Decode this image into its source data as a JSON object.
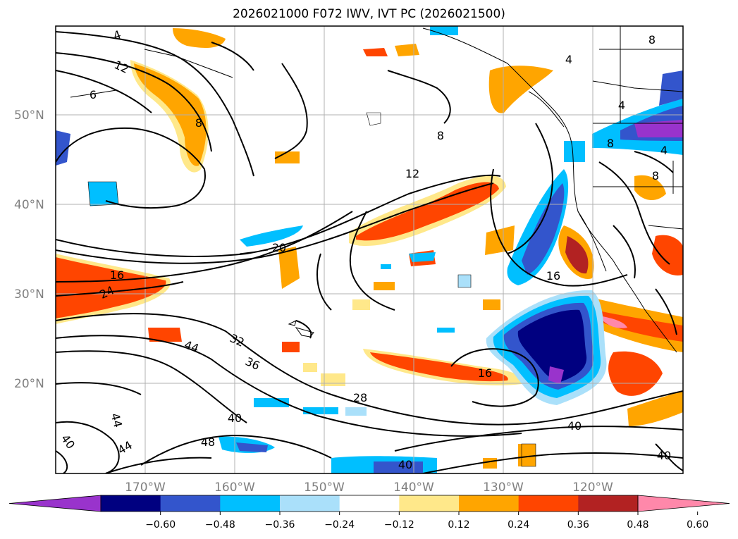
{
  "title": "2026021000 F072 IWV, IVT PC (2026021500)",
  "map": {
    "lat_labels": [
      "50°N",
      "40°N",
      "30°N",
      "20°N"
    ],
    "lon_labels": [
      "170°W",
      "160°W",
      "150°W",
      "140°W",
      "130°W",
      "120°W"
    ],
    "contour_labels": [
      "4",
      "12",
      "6",
      "8",
      "8",
      "8",
      "4",
      "4",
      "8",
      "4",
      "8",
      "12",
      "20",
      "16",
      "24",
      "32",
      "36",
      "44",
      "44",
      "44",
      "40",
      "40",
      "48",
      "28",
      "16",
      "16",
      "40",
      "40",
      "40"
    ]
  },
  "colorbar": {
    "colors": [
      "#9933cc",
      "#000080",
      "#3355cc",
      "#00bfff",
      "#aae0fa",
      "#ffffff",
      "#ffe88a",
      "#ffa500",
      "#ff4500",
      "#b22222",
      "#ff88aa"
    ],
    "ticks": [
      "−0.60",
      "−0.48",
      "−0.36",
      "−0.24",
      "−0.12",
      "0.12",
      "0.24",
      "0.36",
      "0.48",
      "0.60"
    ]
  }
}
